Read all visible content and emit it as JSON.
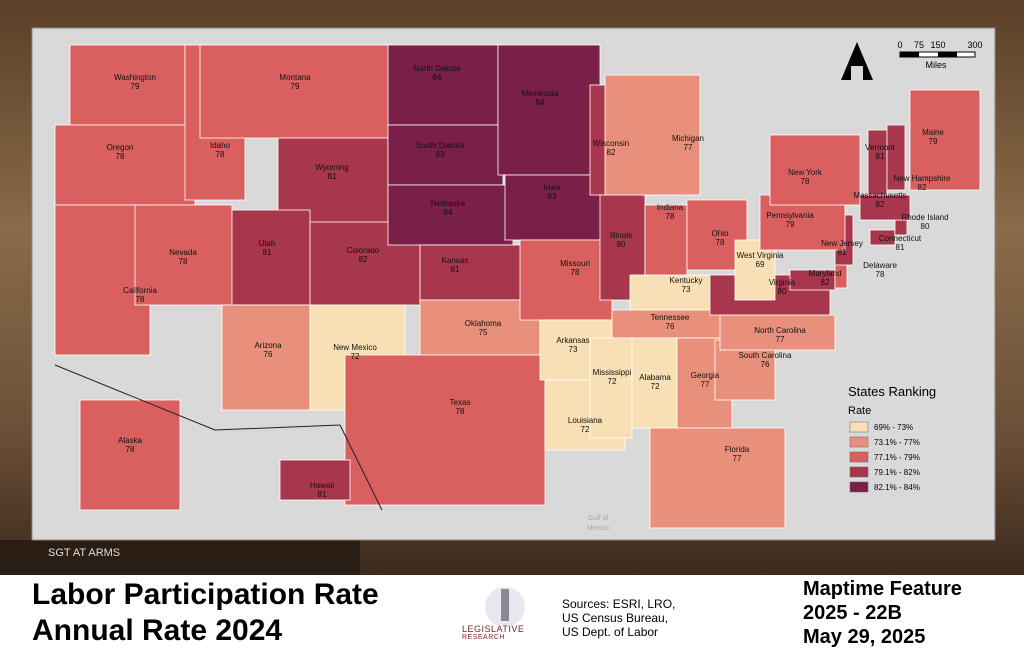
{
  "title_lines": [
    "Labor Participation Rate",
    "Annual Rate 2024"
  ],
  "sources": [
    "Sources:  ESRI, LRO,",
    "US Census Bureau,",
    "US Dept. of Labor"
  ],
  "feature": [
    "Maptime Feature",
    "2025 - 22B",
    "May 29, 2025"
  ],
  "logo": [
    "LEGISLATIVE",
    "RESEARCH"
  ],
  "photo_text": "SGT AT ARMS",
  "map": {
    "water_label": [
      "Gulf of",
      "Mexico"
    ],
    "scale_bar": {
      "labels": [
        "0",
        "75",
        "150",
        "300"
      ],
      "unit": "Miles"
    },
    "legend": {
      "title": "States Ranking",
      "subtitle": "Rate",
      "items": [
        {
          "label": "69% - 73%",
          "color": "#f8dfb5"
        },
        {
          "label": "73.1% - 77%",
          "color": "#e8907c"
        },
        {
          "label": "77.1% - 79%",
          "color": "#d9605e"
        },
        {
          "label": "79.1% - 82%",
          "color": "#a8374e"
        },
        {
          "label": "82.1% - 84%",
          "color": "#7a1f48"
        }
      ]
    },
    "states": [
      {
        "name": "Washington",
        "value": 79,
        "color": "#d9605e"
      },
      {
        "name": "Oregon",
        "value": 78,
        "color": "#d9605e"
      },
      {
        "name": "California",
        "value": 78,
        "color": "#d9605e"
      },
      {
        "name": "Nevada",
        "value": 78,
        "color": "#d9605e"
      },
      {
        "name": "Idaho",
        "value": 78,
        "color": "#d9605e"
      },
      {
        "name": "Montana",
        "value": 79,
        "color": "#d9605e"
      },
      {
        "name": "Wyoming",
        "value": 81,
        "color": "#a8374e"
      },
      {
        "name": "Utah",
        "value": 81,
        "color": "#a8374e"
      },
      {
        "name": "Colorado",
        "value": 82,
        "color": "#a8374e"
      },
      {
        "name": "Arizona",
        "value": 76,
        "color": "#e8907c"
      },
      {
        "name": "New Mexico",
        "value": 72,
        "color": "#f8dfb5"
      },
      {
        "name": "North Dakota",
        "value": 84,
        "color": "#7a1f48"
      },
      {
        "name": "South Dakota",
        "value": 83,
        "color": "#7a1f48"
      },
      {
        "name": "Nebraska",
        "value": 84,
        "color": "#7a1f48"
      },
      {
        "name": "Kansas",
        "value": 81,
        "color": "#a8374e"
      },
      {
        "name": "Oklahoma",
        "value": 75,
        "color": "#e8907c"
      },
      {
        "name": "Texas",
        "value": 78,
        "color": "#d9605e"
      },
      {
        "name": "Minnesota",
        "value": 84,
        "color": "#7a1f48"
      },
      {
        "name": "Iowa",
        "value": 83,
        "color": "#7a1f48"
      },
      {
        "name": "Missouri",
        "value": 78,
        "color": "#d9605e"
      },
      {
        "name": "Arkansas",
        "value": 73,
        "color": "#f8dfb5"
      },
      {
        "name": "Louisiana",
        "value": 72,
        "color": "#f8dfb5"
      },
      {
        "name": "Wisconsin",
        "value": 82,
        "color": "#a8374e"
      },
      {
        "name": "Illinois",
        "value": 80,
        "color": "#a8374e"
      },
      {
        "name": "Michigan",
        "value": 77,
        "color": "#e8907c"
      },
      {
        "name": "Indiana",
        "value": 78,
        "color": "#d9605e"
      },
      {
        "name": "Ohio",
        "value": 78,
        "color": "#d9605e"
      },
      {
        "name": "Kentucky",
        "value": 73,
        "color": "#f8dfb5"
      },
      {
        "name": "Tennessee",
        "value": 76,
        "color": "#e8907c"
      },
      {
        "name": "Mississippi",
        "value": 72,
        "color": "#f8dfb5"
      },
      {
        "name": "Alabama",
        "value": 72,
        "color": "#f8dfb5"
      },
      {
        "name": "Georgia",
        "value": 77,
        "color": "#e8907c"
      },
      {
        "name": "Florida",
        "value": 77,
        "color": "#e8907c"
      },
      {
        "name": "South Carolina",
        "value": 76,
        "color": "#e8907c"
      },
      {
        "name": "North Carolina",
        "value": 77,
        "color": "#e8907c"
      },
      {
        "name": "Virginia",
        "value": 80,
        "color": "#a8374e"
      },
      {
        "name": "West Virginia",
        "value": 69,
        "color": "#f8dfb5"
      },
      {
        "name": "Maryland",
        "value": 82,
        "color": "#a8374e"
      },
      {
        "name": "Delaware",
        "value": 78,
        "color": "#d9605e"
      },
      {
        "name": "New Jersey",
        "value": 81,
        "color": "#a8374e"
      },
      {
        "name": "Pennsylvania",
        "value": 79,
        "color": "#d9605e"
      },
      {
        "name": "New York",
        "value": 78,
        "color": "#d9605e"
      },
      {
        "name": "Connecticut",
        "value": 81,
        "color": "#a8374e"
      },
      {
        "name": "Rhode Island",
        "value": 80,
        "color": "#a8374e"
      },
      {
        "name": "Massachusetts",
        "value": 82,
        "color": "#a8374e"
      },
      {
        "name": "Vermont",
        "value": 81,
        "color": "#a8374e"
      },
      {
        "name": "New Hampshire",
        "value": 82,
        "color": "#a8374e"
      },
      {
        "name": "Maine",
        "value": 79,
        "color": "#d9605e"
      },
      {
        "name": "Alaska",
        "value": 78,
        "color": "#d9605e"
      },
      {
        "name": "Hawaii",
        "value": 81,
        "color": "#a8374e"
      }
    ]
  }
}
